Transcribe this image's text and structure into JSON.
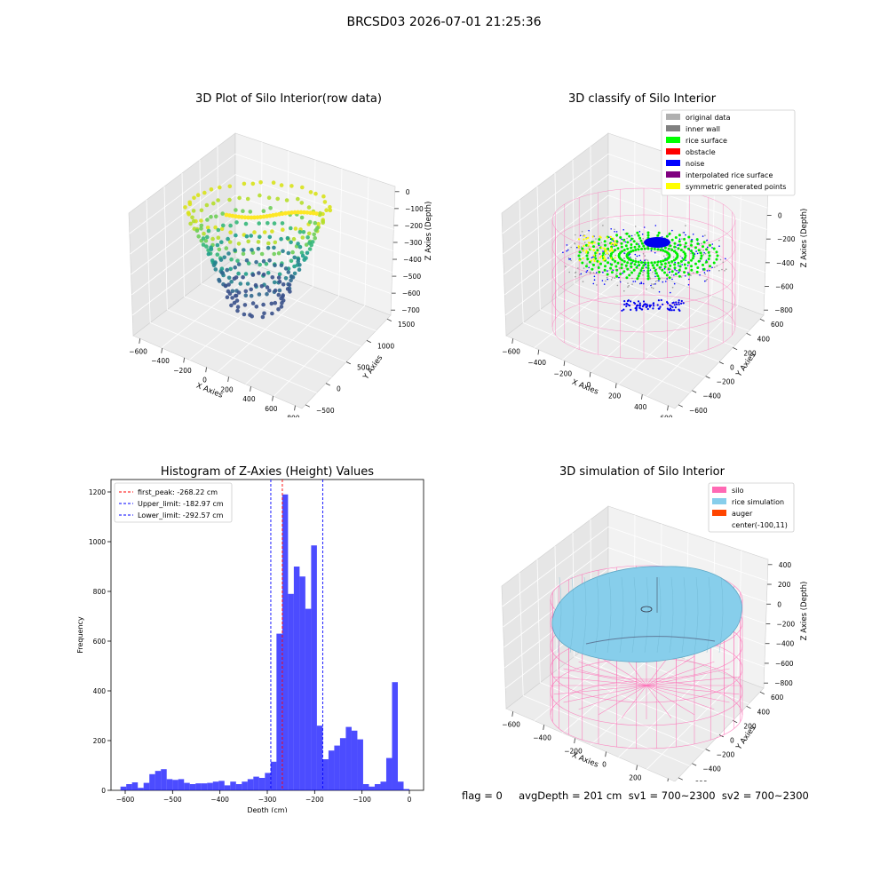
{
  "suptitle": "BRCSD03 2026-07-01 21:25:36",
  "panels": {
    "raw": {
      "title": "3D Plot of Silo Interior(row data)",
      "xlabel": "X Axies",
      "ylabel": "Y Axies",
      "zlabel": "Z Axies (Depth)",
      "xticks": [
        "−600",
        "−400",
        "−200",
        "0",
        "200",
        "400",
        "600",
        "800"
      ],
      "yticks": [
        "−500",
        "0",
        "500",
        "1000",
        "1500"
      ],
      "zticks": [
        "0",
        "−100",
        "−200",
        "−300",
        "−400",
        "−500",
        "−600",
        "−700"
      ],
      "colormap": "viridis"
    },
    "classify": {
      "title": "3D classify of Silo Interior",
      "xlabel": "X Axies",
      "ylabel": "Y Axies",
      "zlabel": "Z Axies (Depth)",
      "xticks": [
        "−600",
        "−400",
        "−200",
        "0",
        "200",
        "400",
        "600"
      ],
      "yticks": [
        "−600",
        "−400",
        "−200",
        "0",
        "200",
        "400",
        "600"
      ],
      "zticks": [
        "200",
        "0",
        "−200",
        "−400",
        "−600",
        "−800"
      ],
      "legend": [
        {
          "label": "original data",
          "color": "#b0b0b0"
        },
        {
          "label": "inner wall",
          "color": "#808080"
        },
        {
          "label": "rice surface",
          "color": "#00ff00"
        },
        {
          "label": "obstacle",
          "color": "#ff0000"
        },
        {
          "label": "noise",
          "color": "#0000ff"
        },
        {
          "label": "interpolated rice surface",
          "color": "#800080"
        },
        {
          "label": "symmetric generated points",
          "color": "#ffff00"
        }
      ]
    },
    "simulation": {
      "title": "3D simulation of Silo Interior",
      "xlabel": "X Axies",
      "ylabel": "Y Axies",
      "zlabel": "Z Axies (Depth)",
      "xticks": [
        "−600",
        "−400",
        "−200",
        "0",
        "200",
        "400"
      ],
      "yticks": [
        "−600",
        "−400",
        "−200",
        "0",
        "200",
        "400",
        "600"
      ],
      "zticks": [
        "400",
        "200",
        "0",
        "−200",
        "−400",
        "−600",
        "−800"
      ],
      "legend": [
        {
          "label": "silo",
          "color": "#ff69b4"
        },
        {
          "label": "rice simulation",
          "color": "#87ceeb"
        },
        {
          "label": "auger",
          "color": "#ff4500"
        },
        {
          "label": "center(-100,11)",
          "color": ""
        }
      ]
    }
  },
  "footer": "flag = 0     avgDepth = 201 cm  sv1 = 700~2300  sv2 = 700~2300",
  "chart_data": {
    "type": "bar",
    "title": "Histogram of Z-Axies (Height) Values",
    "xlabel": "Depth (cm)",
    "ylabel": "Frequency",
    "xlim": [
      -630,
      30
    ],
    "ylim": [
      0,
      1250
    ],
    "xticks": [
      -600,
      -500,
      -400,
      -300,
      -200,
      -100,
      0
    ],
    "xtick_labels": [
      "−600",
      "−500",
      "−400",
      "−300",
      "−200",
      "−100",
      "0"
    ],
    "yticks": [
      0,
      200,
      400,
      600,
      800,
      1000,
      1200
    ],
    "bar_color": "#0000ff",
    "bin_start": -610,
    "bin_width": 12.2,
    "values": [
      15,
      25,
      32,
      10,
      30,
      65,
      78,
      85,
      45,
      42,
      45,
      30,
      25,
      28,
      28,
      30,
      35,
      38,
      20,
      35,
      25,
      35,
      45,
      55,
      50,
      70,
      115,
      630,
      1190,
      790,
      900,
      860,
      730,
      985,
      260,
      125,
      160,
      180,
      210,
      255,
      240,
      205,
      25,
      15,
      25,
      35,
      130,
      435,
      35,
      5
    ],
    "vlines": [
      {
        "label": "first_peak: -268.22 cm",
        "x": -268.22,
        "color": "#ff0000"
      },
      {
        "label": "Upper_limit: -182.97 cm",
        "x": -182.97,
        "color": "#0000ff"
      },
      {
        "label": "Lower_limit: -292.57 cm",
        "x": -292.57,
        "color": "#0000ff"
      }
    ],
    "legend_position": "upper left"
  }
}
